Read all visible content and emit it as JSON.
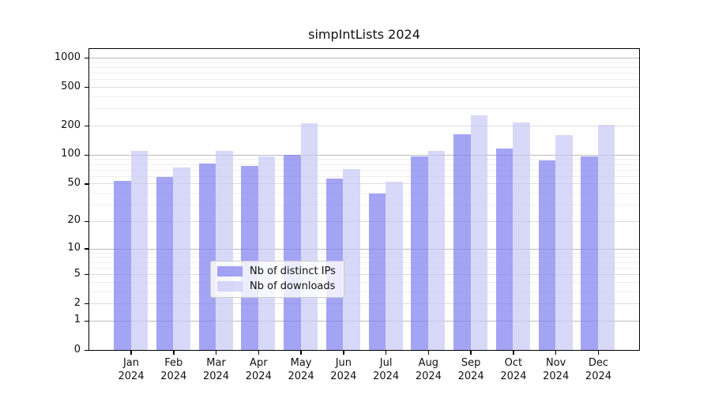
{
  "figure": {
    "background": "#ffffff",
    "axis_color": "#000000",
    "grid_major_color": "#bbbbbb",
    "grid_sub_color": "#dcdcdc",
    "grid_minor_color": "#efefef"
  },
  "chart_data": {
    "type": "bar",
    "title": "simpIntLists 2024",
    "categories": [
      "Jan",
      "Feb",
      "Mar",
      "Apr",
      "May",
      "Jun",
      "Jul",
      "Aug",
      "Sep",
      "Oct",
      "Nov",
      "Dec"
    ],
    "x_tick_line2": "2024",
    "series": [
      {
        "name": "Nb of distinct IPs",
        "color": "#8181f1",
        "alpha": 0.72,
        "values": [
          56,
          61,
          84,
          80,
          103,
          59,
          41,
          99,
          169,
          121,
          91,
          99
        ]
      },
      {
        "name": "Nb of downloads",
        "color": "#c9c9f5",
        "alpha": 0.72,
        "values": [
          114,
          77,
          113,
          99,
          219,
          74,
          54,
          113,
          265,
          223,
          166,
          213
        ]
      }
    ],
    "yscale": "log1p",
    "yticks": [
      0,
      1,
      2,
      5,
      10,
      20,
      50,
      100,
      200,
      500,
      1000
    ],
    "ylim": [
      0,
      1255
    ],
    "grid": true,
    "legend_position": "lower center"
  }
}
